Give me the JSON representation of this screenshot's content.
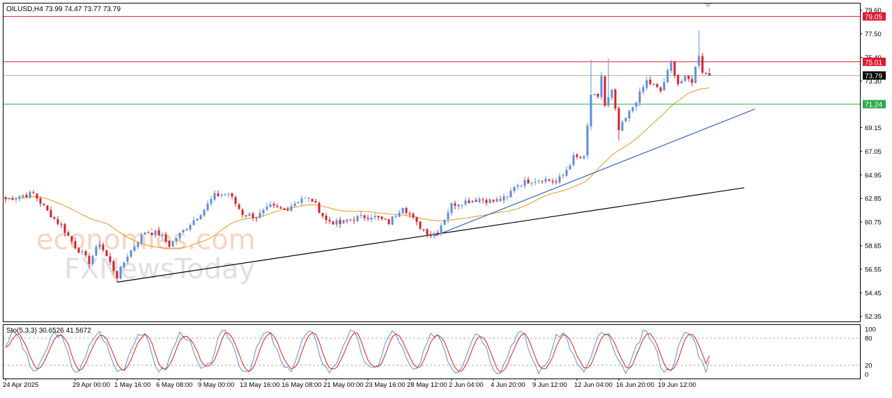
{
  "chart_data": {
    "type": "candlestick",
    "symbol_header": "OILUSD,H4  73.99 74.47 73.77 73.79",
    "watermark": {
      "line1": "economies.com",
      "line2": "FXNewsToday"
    },
    "y_axis": {
      "range": [
        51.9,
        80.2
      ],
      "ticks": [
        "79.60",
        "77.50",
        "75.40",
        "73.30",
        "69.15",
        "67.05",
        "64.95",
        "62.85",
        "60.75",
        "58.65",
        "56.55",
        "54.45",
        "52.35"
      ]
    },
    "x_axis": {
      "labels": [
        "24 Apr 2025",
        "29 Apr 00:00",
        "1 May 16:00",
        "6 May 08:00",
        "9 May 00:00",
        "13 May 16:00",
        "16 May 08:00",
        "21 May 00:00",
        "23 May 16:00",
        "28 May 12:00",
        "2 Jun 04:00",
        "4 Jun 20:00",
        "9 Jun 12:00",
        "12 Jun 04:00",
        "16 Jun 20:00",
        "19 Jun 12:00"
      ],
      "label_bar_index": [
        0,
        20,
        32,
        44,
        56,
        68,
        80,
        92,
        104,
        116,
        128,
        140,
        152,
        164,
        176,
        188
      ]
    },
    "levels": [
      {
        "price": 79.05,
        "label": "79.05",
        "color": "#e0182a"
      },
      {
        "price": 75.01,
        "label": "75.01",
        "color": "#e0182a"
      },
      {
        "price": 73.79,
        "label": "73.79",
        "color": "#b0b0b0",
        "label_bg": "#000000"
      },
      {
        "price": 71.24,
        "label": "71.24",
        "color": "#2eaa4a"
      }
    ],
    "trendlines": [
      {
        "color": "#000000",
        "from": {
          "bar": 32,
          "price": 55.4
        },
        "to": {
          "bar": 212,
          "price": 63.8
        }
      },
      {
        "color": "#2f5ec6",
        "from": {
          "bar": 123,
          "price": 59.5
        },
        "to": {
          "bar": 215,
          "price": 70.8
        }
      }
    ],
    "moving_average": {
      "color": "#e8961c"
    },
    "candle_colors": {
      "up": "#5b8dd9",
      "down": "#d81e2a"
    },
    "ohlc_anchors": [
      [
        0,
        62.8
      ],
      [
        8,
        63.3
      ],
      [
        12,
        61.7
      ],
      [
        16,
        60.4
      ],
      [
        20,
        58.6
      ],
      [
        24,
        57.2
      ],
      [
        27,
        58.9
      ],
      [
        29,
        57.7
      ],
      [
        32,
        55.9
      ],
      [
        35,
        57.8
      ],
      [
        40,
        59.9
      ],
      [
        44,
        59.7
      ],
      [
        47,
        58.7
      ],
      [
        52,
        60.3
      ],
      [
        57,
        61.9
      ],
      [
        60,
        63.1
      ],
      [
        64,
        63.3
      ],
      [
        68,
        61.5
      ],
      [
        72,
        61.2
      ],
      [
        76,
        62.1
      ],
      [
        80,
        61.8
      ],
      [
        85,
        62.9
      ],
      [
        88,
        62.7
      ],
      [
        92,
        60.9
      ],
      [
        96,
        60.6
      ],
      [
        100,
        61.1
      ],
      [
        105,
        61.3
      ],
      [
        110,
        60.7
      ],
      [
        114,
        62.2
      ],
      [
        118,
        60.6
      ],
      [
        122,
        59.6
      ],
      [
        124,
        59.9
      ],
      [
        128,
        62.3
      ],
      [
        132,
        62.6
      ],
      [
        136,
        62.8
      ],
      [
        140,
        62.6
      ],
      [
        144,
        62.9
      ],
      [
        146,
        64.0
      ],
      [
        150,
        64.4
      ],
      [
        154,
        64.6
      ],
      [
        158,
        64.3
      ],
      [
        160,
        64.9
      ],
      [
        163,
        66.5
      ],
      [
        166,
        66.4
      ],
      [
        168,
        72.1
      ],
      [
        170,
        71.7
      ],
      [
        171,
        73.8
      ],
      [
        172,
        71.1
      ],
      [
        174,
        72.4
      ],
      [
        176,
        68.9
      ],
      [
        180,
        71.0
      ],
      [
        184,
        73.3
      ],
      [
        188,
        72.4
      ],
      [
        191,
        74.9
      ],
      [
        193,
        73.1
      ],
      [
        195,
        73.5
      ],
      [
        197,
        73.3
      ],
      [
        199,
        75.7
      ],
      [
        200,
        74.2
      ],
      [
        202,
        73.79
      ]
    ],
    "wick_spikes": [
      {
        "bar": 168,
        "high": 75.2
      },
      {
        "bar": 173,
        "high": 75.3
      },
      {
        "bar": 199,
        "high": 77.8
      },
      {
        "bar": 176,
        "low": 68.0
      },
      {
        "bar": 32,
        "low": 55.4
      },
      {
        "bar": 122,
        "low": 59.3
      }
    ],
    "stochastic": {
      "label": "Sto(5,3,3) 30.6526 41.5672",
      "main": 30.6526,
      "signal": 41.5672,
      "range": [
        0,
        100
      ],
      "ticks": [
        "100",
        "80",
        "20",
        "0"
      ],
      "levels": [
        80,
        20
      ],
      "colors": {
        "main": "#5b8dd9",
        "signal": "#d81e2a"
      }
    }
  }
}
